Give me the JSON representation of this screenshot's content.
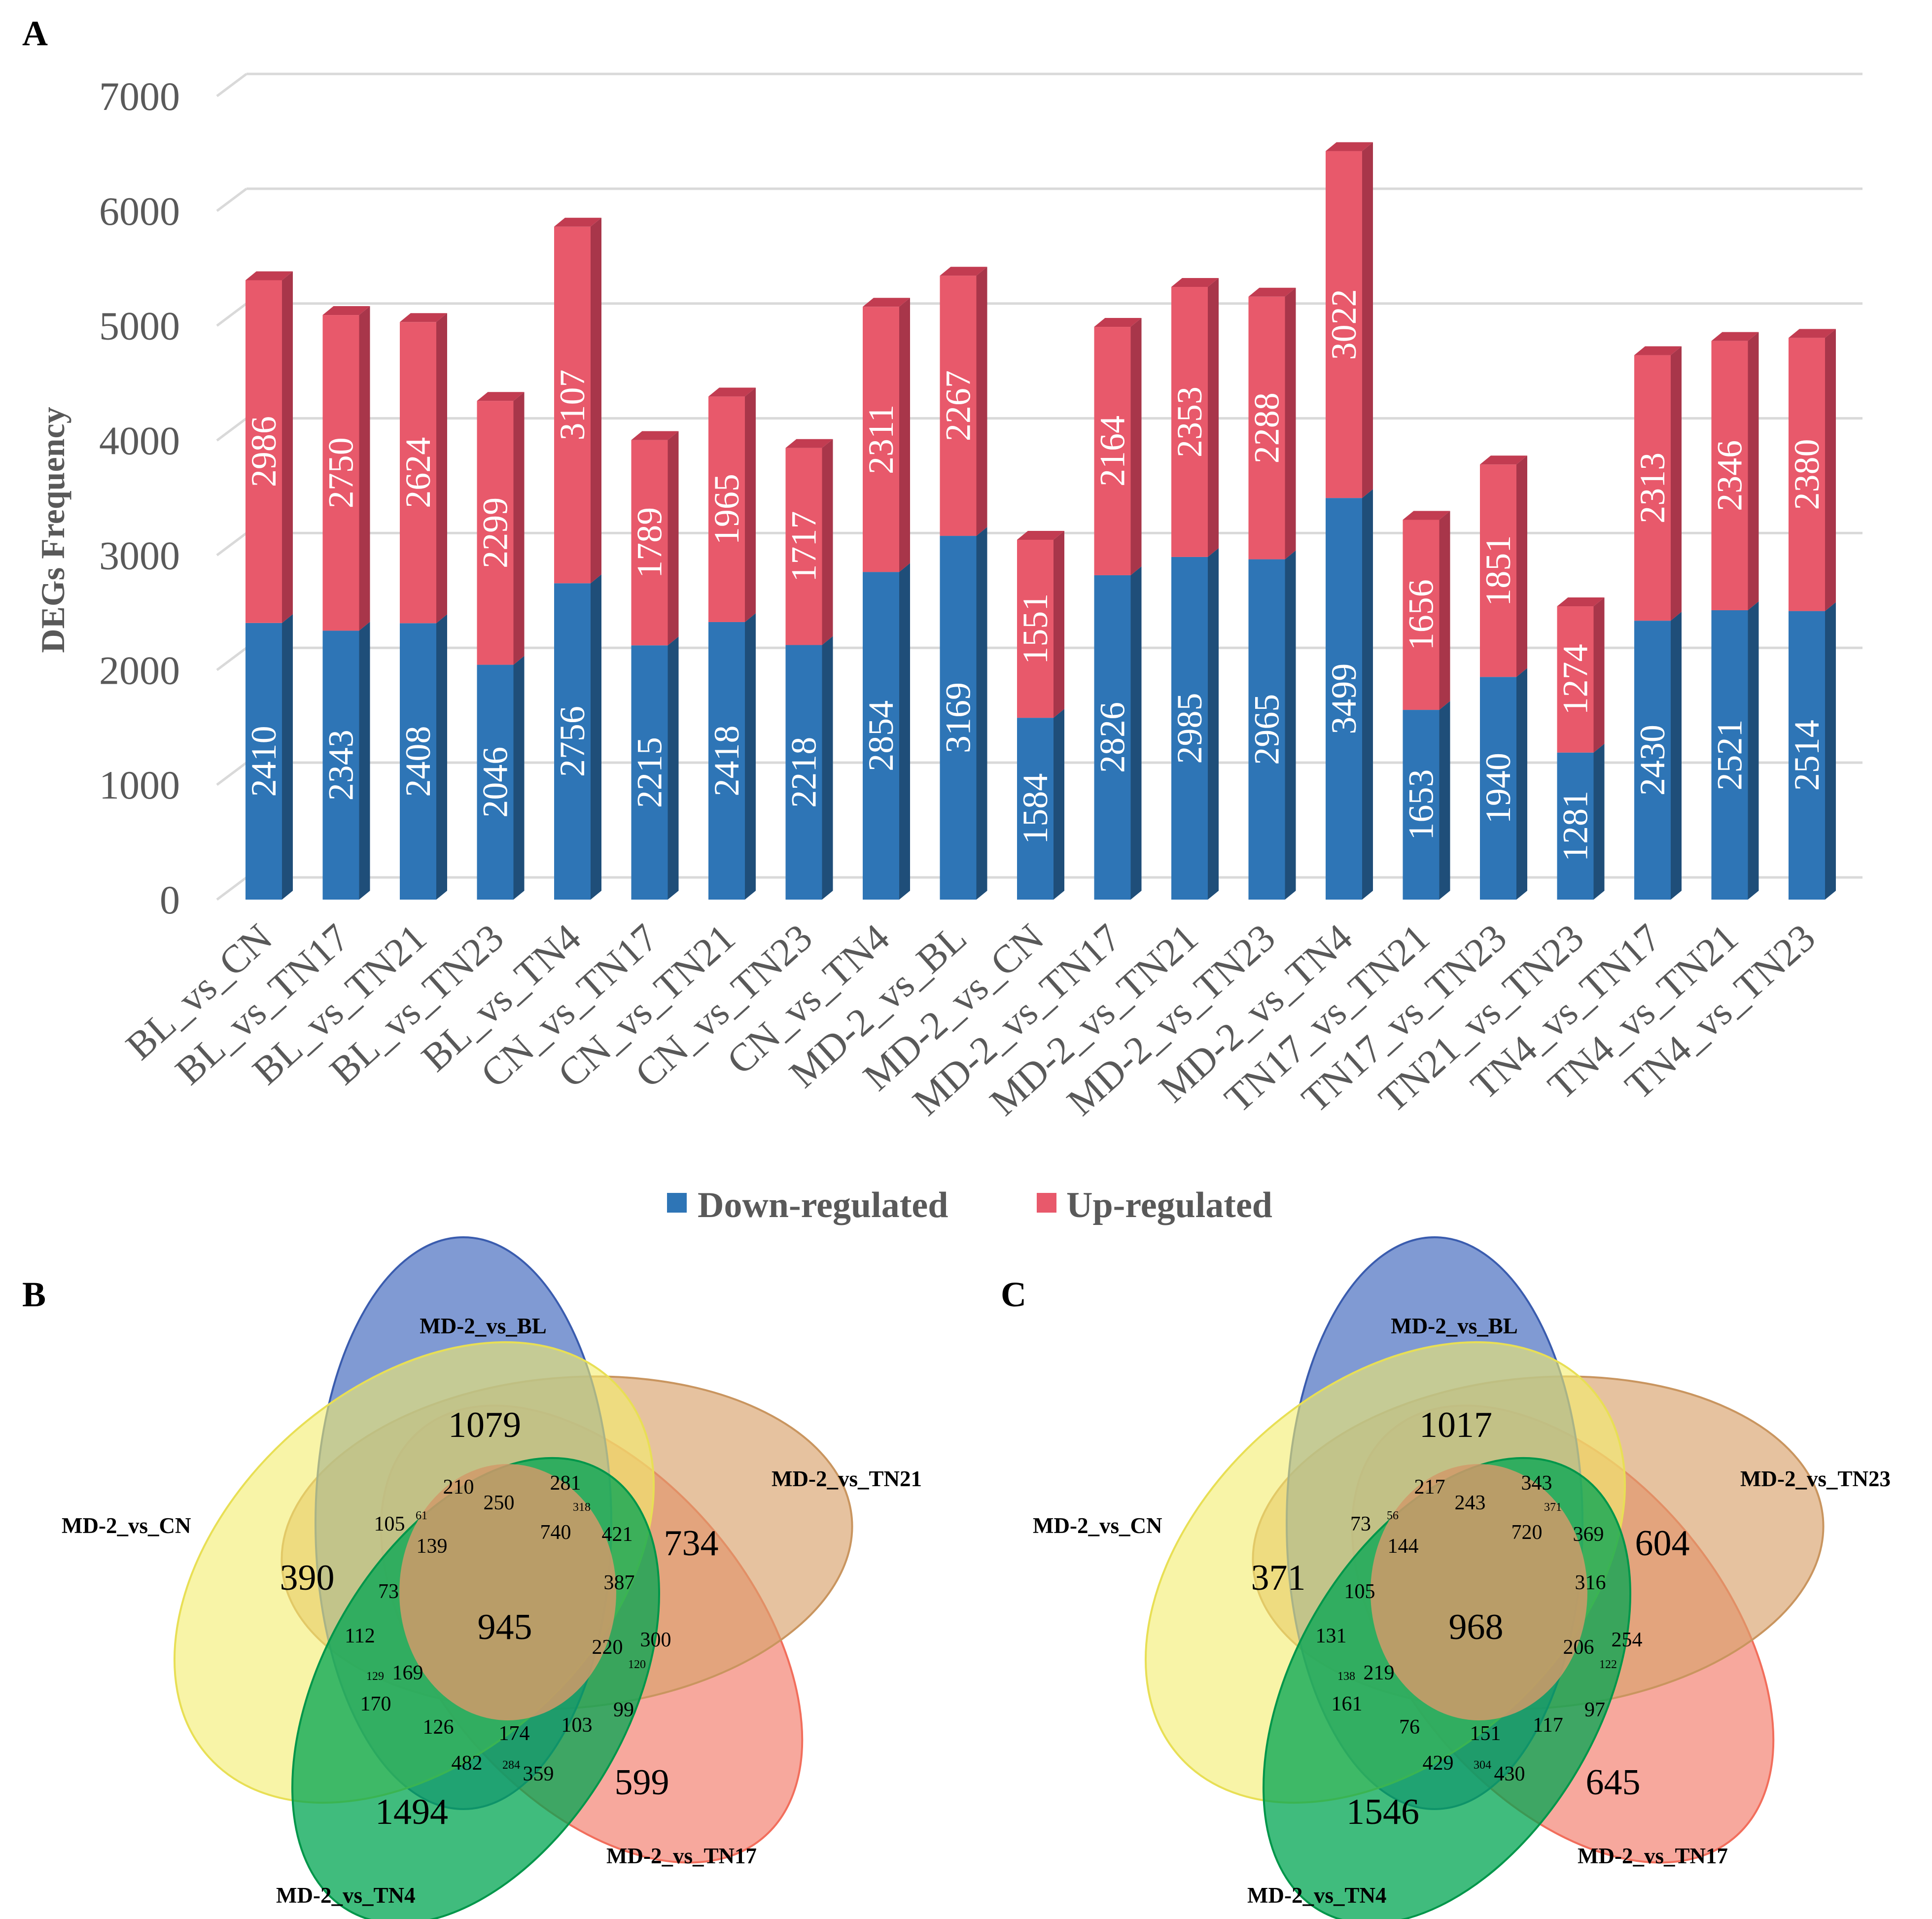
{
  "panels": {
    "a": "A",
    "b": "B",
    "c": "C"
  },
  "chart_data": {
    "type": "bar",
    "stacked": true,
    "ylabel": "DEGs Frequency",
    "ylim": [
      0,
      7000
    ],
    "yticks": [
      0,
      1000,
      2000,
      3000,
      4000,
      5000,
      6000,
      7000
    ],
    "categories": [
      "BL_vs_CN",
      "BL_vs_TN17",
      "BL_vs_TN21",
      "BL_vs_TN23",
      "BL_vs_TN4",
      "CN_vs_TN17",
      "CN_vs_TN21",
      "CN_vs_TN23",
      "CN_vs_TN4",
      "MD-2_vs_BL",
      "MD-2_vs_CN",
      "MD-2_vs_TN17",
      "MD-2_vs_TN21",
      "MD-2_vs_TN23",
      "MD-2_vs_TN4",
      "TN17_vs_TN21",
      "TN17_vs_TN23",
      "TN21_vs_TN23",
      "TN4_vs_TN17",
      "TN4_vs_TN21",
      "TN4_vs_TN23"
    ],
    "series": [
      {
        "name": "Down-regulated",
        "color": "#2e75b6",
        "values": [
          2410,
          2343,
          2408,
          2046,
          2756,
          2215,
          2418,
          2218,
          2854,
          3169,
          1584,
          2826,
          2985,
          2965,
          3499,
          1653,
          1940,
          1281,
          2430,
          2521,
          2514
        ]
      },
      {
        "name": "Up-regulated",
        "color": "#e8596b",
        "values": [
          2986,
          2750,
          2624,
          2299,
          3107,
          1789,
          1965,
          1717,
          2311,
          2267,
          1551,
          2164,
          2353,
          2288,
          3022,
          1656,
          1851,
          1274,
          2313,
          2346,
          2380
        ]
      }
    ],
    "legend_position": "bottom"
  },
  "venn_b": {
    "sets": [
      "MD-2_vs_BL",
      "MD-2_vs_TN21",
      "MD-2_vs_TN17",
      "MD-2_vs_TN4",
      "MD-2_vs_CN"
    ],
    "colors": [
      "#4a6fc1",
      "#d9a26b",
      "#f26e5c",
      "#00a651",
      "#f3ec6c"
    ],
    "regions": {
      "bl_only": "1079",
      "tn21_only": "734",
      "tn17_only": "599",
      "tn4_only": "1494",
      "cn_only": "390",
      "center": "945",
      "m210": "210",
      "m250": "250",
      "m281": "281",
      "m318": "318",
      "m61": "61",
      "m105": "105",
      "m139": "139",
      "m740": "740",
      "m421": "421",
      "m387": "387",
      "m73": "73",
      "m112": "112",
      "m220": "220",
      "m300": "300",
      "m120": "120",
      "m129": "129",
      "m169": "169",
      "m170": "170",
      "m126": "126",
      "m174": "174",
      "m103": "103",
      "m99": "99",
      "m482": "482",
      "m284": "284",
      "m359": "359"
    }
  },
  "venn_c": {
    "sets": [
      "MD-2_vs_BL",
      "MD-2_vs_TN23",
      "MD-2_vs_TN17",
      "MD-2_vs_TN4",
      "MD-2_vs_CN"
    ],
    "colors": [
      "#4a6fc1",
      "#d9a26b",
      "#f26e5c",
      "#00a651",
      "#f3ec6c"
    ],
    "regions": {
      "bl_only": "1017",
      "tn23_only": "604",
      "tn17_only": "645",
      "tn4_only": "1546",
      "cn_only": "371",
      "center": "968",
      "m217": "217",
      "m243": "243",
      "m343": "343",
      "m371": "371",
      "m56": "56",
      "m73": "73",
      "m144": "144",
      "m720": "720",
      "m369": "369",
      "m316": "316",
      "m105": "105",
      "m131": "131",
      "m206": "206",
      "m254": "254",
      "m122": "122",
      "m138": "138",
      "m219": "219",
      "m161": "161",
      "m76": "76",
      "m151": "151",
      "m117": "117",
      "m97": "97",
      "m429": "429",
      "m304": "304",
      "m430": "430"
    }
  }
}
